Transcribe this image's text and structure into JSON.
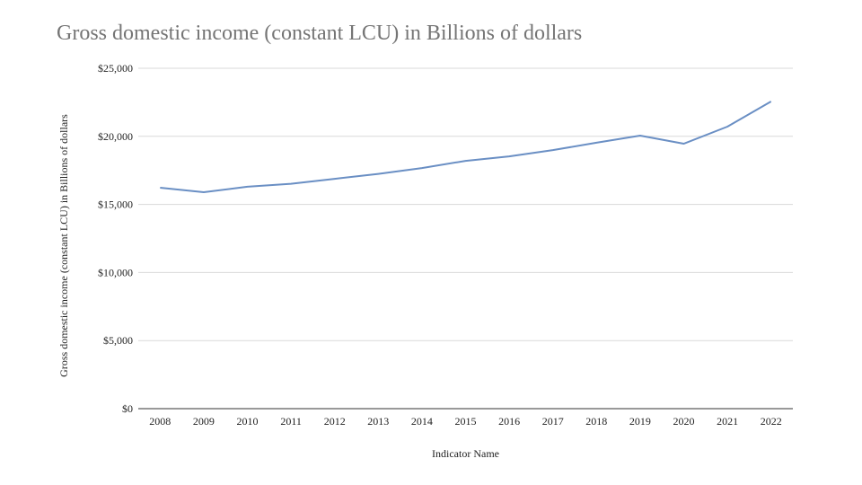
{
  "chart_data": {
    "type": "line",
    "title": "Gross domestic income (constant LCU) in Billions of dollars",
    "xlabel": "Indicator Name",
    "ylabel": "Gross domestic income (constant LCU) in Billions of dollars",
    "categories": [
      "2008",
      "2009",
      "2010",
      "2011",
      "2012",
      "2013",
      "2014",
      "2015",
      "2016",
      "2017",
      "2018",
      "2019",
      "2020",
      "2021",
      "2022"
    ],
    "series": [
      {
        "name": "Gross domestic income (constant LCU) in Billions of dollars",
        "color": "#6a8fc4",
        "values": [
          16230,
          15900,
          16300,
          16520,
          16880,
          17240,
          17670,
          18200,
          18530,
          18990,
          19530,
          20050,
          19460,
          20710,
          22560
        ]
      }
    ],
    "ylim": [
      0,
      25000
    ],
    "yticks": [
      0,
      5000,
      10000,
      15000,
      20000,
      25000
    ],
    "ytick_labels": [
      "$0",
      "$5,000",
      "$10,000",
      "$15,000",
      "$20,000",
      "$25,000"
    ],
    "grid": true,
    "legend": "none"
  }
}
